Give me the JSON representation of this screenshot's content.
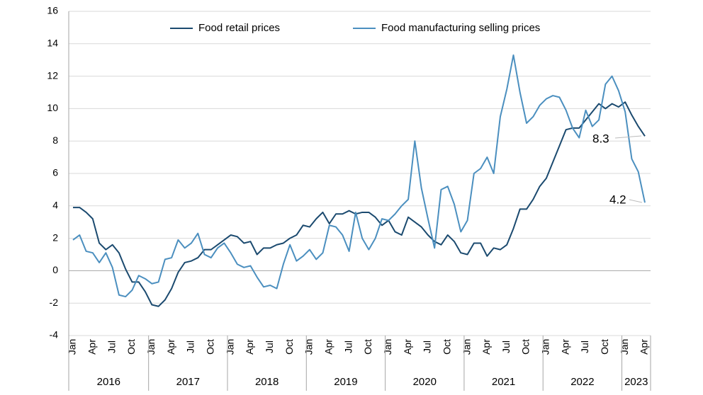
{
  "chart_data": {
    "type": "line",
    "categories": [
      "Jan",
      null,
      null,
      "Apr",
      null,
      null,
      "Jul",
      null,
      null,
      "Oct",
      null,
      null,
      "Jan",
      null,
      null,
      "Apr",
      null,
      null,
      "Jul",
      null,
      null,
      "Oct",
      null,
      null,
      "Jan",
      null,
      null,
      "Apr",
      null,
      null,
      "Jul",
      null,
      null,
      "Oct",
      null,
      null,
      "Jan",
      null,
      null,
      "Apr",
      null,
      null,
      "Jul",
      null,
      null,
      "Oct",
      null,
      null,
      "Jan",
      null,
      null,
      "Apr",
      null,
      null,
      "Jul",
      null,
      null,
      "Oct",
      null,
      null,
      "Jan",
      null,
      null,
      "Apr",
      null,
      null,
      "Jul",
      null,
      null,
      "Oct",
      null,
      null,
      "Jan",
      null,
      null,
      "Apr",
      null,
      null,
      "Jul",
      null,
      null,
      "Oct",
      null,
      null,
      "Jan",
      null,
      null,
      "Apr"
    ],
    "groups": [
      "2016",
      "2017",
      "2018",
      "2019",
      "2020",
      "2021",
      "2022",
      "2023"
    ],
    "series": [
      {
        "name": "Food retail prices",
        "color": "#1b4a6f",
        "values": [
          3.9,
          3.9,
          3.6,
          3.2,
          1.7,
          1.3,
          1.6,
          1.1,
          0.1,
          -0.7,
          -0.7,
          -1.3,
          -2.1,
          -2.2,
          -1.8,
          -1.1,
          -0.1,
          0.5,
          0.6,
          0.8,
          1.3,
          1.3,
          1.6,
          1.9,
          2.2,
          2.1,
          1.7,
          1.8,
          1.0,
          1.4,
          1.4,
          1.6,
          1.7,
          2.0,
          2.2,
          2.8,
          2.7,
          3.2,
          3.6,
          2.9,
          3.5,
          3.5,
          3.7,
          3.5,
          3.6,
          3.6,
          3.3,
          2.8,
          3.1,
          2.4,
          2.2,
          3.3,
          3.0,
          2.7,
          2.2,
          1.8,
          1.6,
          2.2,
          1.8,
          1.1,
          1.0,
          1.7,
          1.7,
          0.9,
          1.4,
          1.3,
          1.6,
          2.6,
          3.8,
          3.8,
          4.4,
          5.2,
          5.7,
          6.7,
          7.7,
          8.7,
          8.8,
          8.8,
          9.3,
          9.8,
          10.3,
          10.0,
          10.3,
          10.1,
          10.4,
          9.6,
          8.9,
          8.3
        ]
      },
      {
        "name": "Food manufacturing selling prices",
        "color": "#4b8fbf",
        "values": [
          1.9,
          2.2,
          1.2,
          1.1,
          0.5,
          1.1,
          0.2,
          -1.5,
          -1.6,
          -1.2,
          -0.3,
          -0.5,
          -0.8,
          -0.7,
          0.7,
          0.8,
          1.9,
          1.4,
          1.7,
          2.3,
          1.0,
          0.8,
          1.4,
          1.7,
          1.1,
          0.4,
          0.2,
          0.3,
          -0.4,
          -1.0,
          -0.9,
          -1.1,
          0.4,
          1.6,
          0.6,
          0.9,
          1.3,
          0.7,
          1.1,
          2.8,
          2.7,
          2.2,
          1.2,
          3.6,
          2.0,
          1.3,
          2.0,
          3.2,
          3.1,
          3.5,
          4.0,
          4.4,
          8.0,
          5.1,
          3.2,
          1.4,
          5.0,
          5.2,
          4.1,
          2.4,
          3.1,
          6.0,
          6.3,
          7.0,
          6.0,
          9.5,
          11.2,
          13.3,
          11.0,
          9.1,
          9.5,
          10.2,
          10.6,
          10.8,
          10.7,
          9.9,
          8.8,
          8.2,
          9.9,
          8.9,
          9.3,
          11.5,
          12.0,
          11.1,
          9.8,
          6.9,
          6.1,
          4.2
        ]
      }
    ],
    "ylim": [
      -4,
      16
    ],
    "yticks": [
      -4,
      -2,
      0,
      2,
      4,
      6,
      8,
      10,
      12,
      14,
      16
    ],
    "grid": true
  }
}
